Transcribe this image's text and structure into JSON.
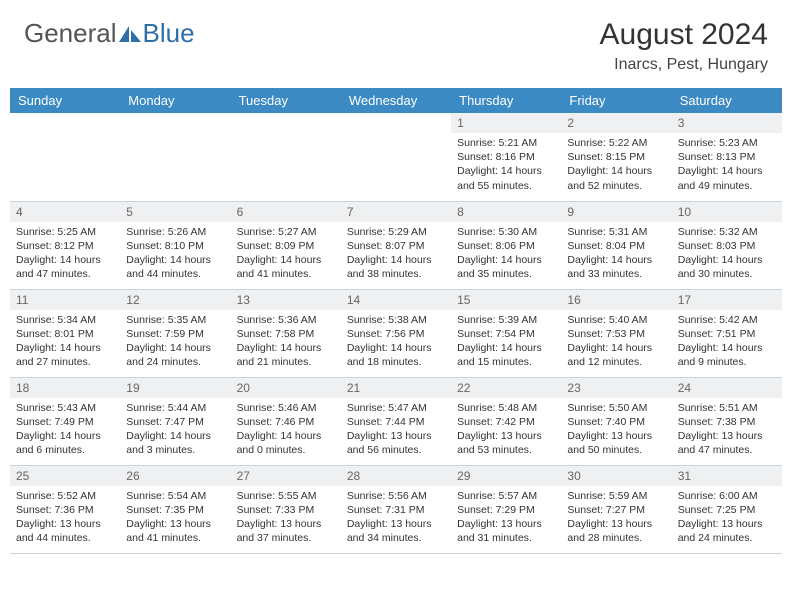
{
  "logo": {
    "text1": "General",
    "text2": "Blue"
  },
  "title": "August 2024",
  "location": "Inarcs, Pest, Hungary",
  "colors": {
    "header_bg": "#3b8ac4",
    "header_text": "#ffffff",
    "daynum_bg": "#eef0f2",
    "border": "#c9d3dc",
    "logo_blue": "#2f6fa8"
  },
  "weekdays": [
    "Sunday",
    "Monday",
    "Tuesday",
    "Wednesday",
    "Thursday",
    "Friday",
    "Saturday"
  ],
  "weeks": [
    [
      {
        "empty": true
      },
      {
        "empty": true
      },
      {
        "empty": true
      },
      {
        "empty": true
      },
      {
        "day": "1",
        "sunrise": "5:21 AM",
        "sunset": "8:16 PM",
        "daylight": "14 hours and 55 minutes."
      },
      {
        "day": "2",
        "sunrise": "5:22 AM",
        "sunset": "8:15 PM",
        "daylight": "14 hours and 52 minutes."
      },
      {
        "day": "3",
        "sunrise": "5:23 AM",
        "sunset": "8:13 PM",
        "daylight": "14 hours and 49 minutes."
      }
    ],
    [
      {
        "day": "4",
        "sunrise": "5:25 AM",
        "sunset": "8:12 PM",
        "daylight": "14 hours and 47 minutes."
      },
      {
        "day": "5",
        "sunrise": "5:26 AM",
        "sunset": "8:10 PM",
        "daylight": "14 hours and 44 minutes."
      },
      {
        "day": "6",
        "sunrise": "5:27 AM",
        "sunset": "8:09 PM",
        "daylight": "14 hours and 41 minutes."
      },
      {
        "day": "7",
        "sunrise": "5:29 AM",
        "sunset": "8:07 PM",
        "daylight": "14 hours and 38 minutes."
      },
      {
        "day": "8",
        "sunrise": "5:30 AM",
        "sunset": "8:06 PM",
        "daylight": "14 hours and 35 minutes."
      },
      {
        "day": "9",
        "sunrise": "5:31 AM",
        "sunset": "8:04 PM",
        "daylight": "14 hours and 33 minutes."
      },
      {
        "day": "10",
        "sunrise": "5:32 AM",
        "sunset": "8:03 PM",
        "daylight": "14 hours and 30 minutes."
      }
    ],
    [
      {
        "day": "11",
        "sunrise": "5:34 AM",
        "sunset": "8:01 PM",
        "daylight": "14 hours and 27 minutes."
      },
      {
        "day": "12",
        "sunrise": "5:35 AM",
        "sunset": "7:59 PM",
        "daylight": "14 hours and 24 minutes."
      },
      {
        "day": "13",
        "sunrise": "5:36 AM",
        "sunset": "7:58 PM",
        "daylight": "14 hours and 21 minutes."
      },
      {
        "day": "14",
        "sunrise": "5:38 AM",
        "sunset": "7:56 PM",
        "daylight": "14 hours and 18 minutes."
      },
      {
        "day": "15",
        "sunrise": "5:39 AM",
        "sunset": "7:54 PM",
        "daylight": "14 hours and 15 minutes."
      },
      {
        "day": "16",
        "sunrise": "5:40 AM",
        "sunset": "7:53 PM",
        "daylight": "14 hours and 12 minutes."
      },
      {
        "day": "17",
        "sunrise": "5:42 AM",
        "sunset": "7:51 PM",
        "daylight": "14 hours and 9 minutes."
      }
    ],
    [
      {
        "day": "18",
        "sunrise": "5:43 AM",
        "sunset": "7:49 PM",
        "daylight": "14 hours and 6 minutes."
      },
      {
        "day": "19",
        "sunrise": "5:44 AM",
        "sunset": "7:47 PM",
        "daylight": "14 hours and 3 minutes."
      },
      {
        "day": "20",
        "sunrise": "5:46 AM",
        "sunset": "7:46 PM",
        "daylight": "14 hours and 0 minutes."
      },
      {
        "day": "21",
        "sunrise": "5:47 AM",
        "sunset": "7:44 PM",
        "daylight": "13 hours and 56 minutes."
      },
      {
        "day": "22",
        "sunrise": "5:48 AM",
        "sunset": "7:42 PM",
        "daylight": "13 hours and 53 minutes."
      },
      {
        "day": "23",
        "sunrise": "5:50 AM",
        "sunset": "7:40 PM",
        "daylight": "13 hours and 50 minutes."
      },
      {
        "day": "24",
        "sunrise": "5:51 AM",
        "sunset": "7:38 PM",
        "daylight": "13 hours and 47 minutes."
      }
    ],
    [
      {
        "day": "25",
        "sunrise": "5:52 AM",
        "sunset": "7:36 PM",
        "daylight": "13 hours and 44 minutes."
      },
      {
        "day": "26",
        "sunrise": "5:54 AM",
        "sunset": "7:35 PM",
        "daylight": "13 hours and 41 minutes."
      },
      {
        "day": "27",
        "sunrise": "5:55 AM",
        "sunset": "7:33 PM",
        "daylight": "13 hours and 37 minutes."
      },
      {
        "day": "28",
        "sunrise": "5:56 AM",
        "sunset": "7:31 PM",
        "daylight": "13 hours and 34 minutes."
      },
      {
        "day": "29",
        "sunrise": "5:57 AM",
        "sunset": "7:29 PM",
        "daylight": "13 hours and 31 minutes."
      },
      {
        "day": "30",
        "sunrise": "5:59 AM",
        "sunset": "7:27 PM",
        "daylight": "13 hours and 28 minutes."
      },
      {
        "day": "31",
        "sunrise": "6:00 AM",
        "sunset": "7:25 PM",
        "daylight": "13 hours and 24 minutes."
      }
    ]
  ],
  "labels": {
    "sunrise": "Sunrise:",
    "sunset": "Sunset:",
    "daylight": "Daylight:"
  }
}
